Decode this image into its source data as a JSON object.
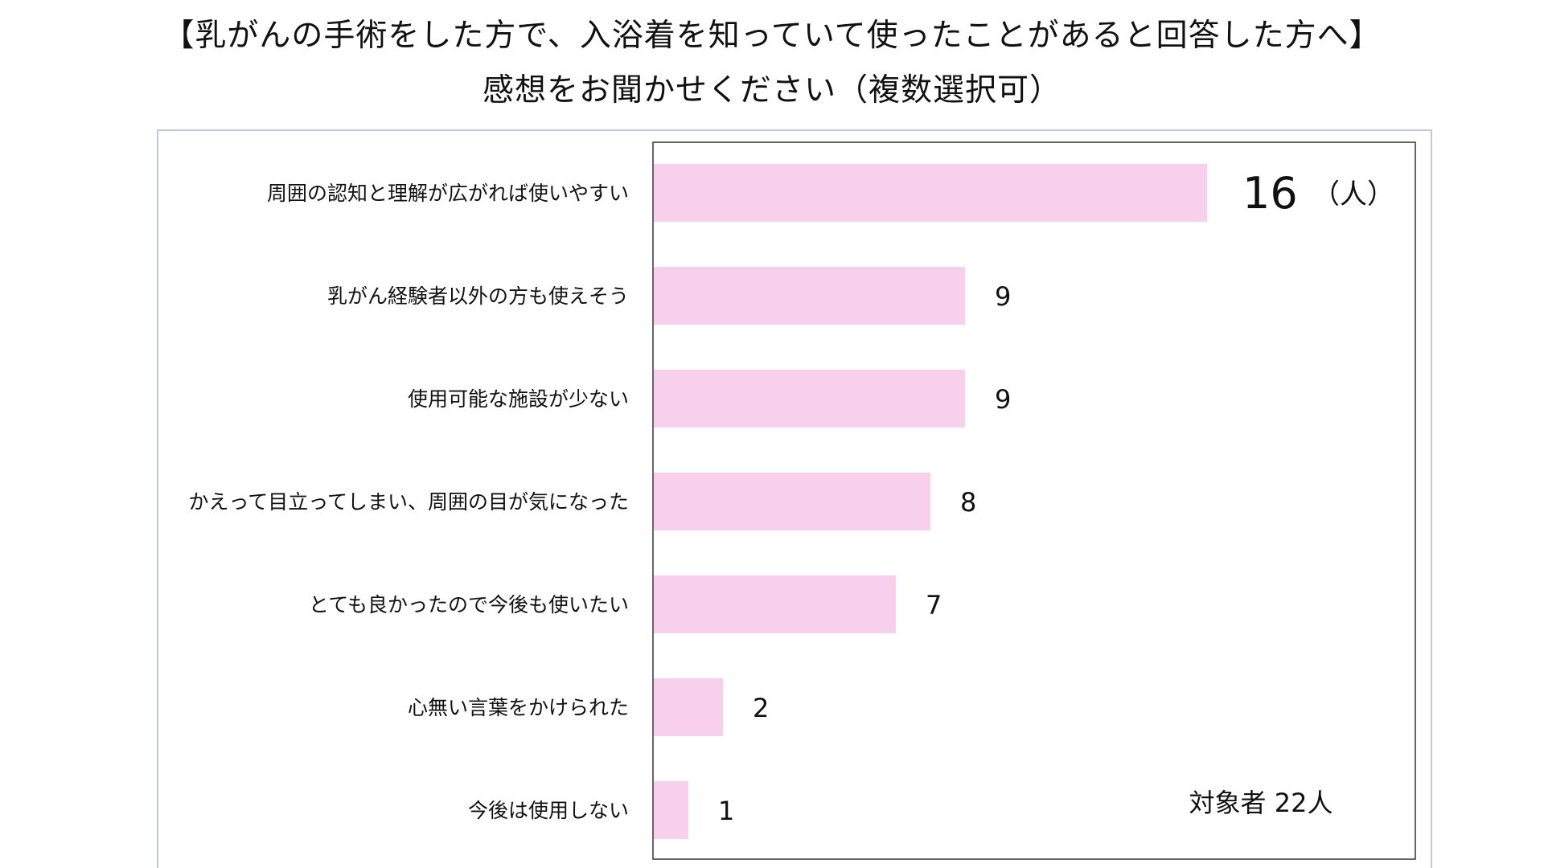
{
  "title_line1": "【乳がんの手術をした方で、入浴着を知っていて使ったことがあると回答した方へ】",
  "title_line2": "感想をお聞かせください（複数選択可）",
  "colors": {
    "bar": "#f8d0ec",
    "plot_border": "#333333",
    "frame_border": "#a9b8cc"
  },
  "chart_data": {
    "type": "bar",
    "orientation": "horizontal",
    "title": "【乳がんの手術をした方で、入浴着を知っていて使ったことがあると回答した方へ】感想をお聞かせください（複数選択可）",
    "categories": [
      "周囲の認知と理解が広がれば使いやすい",
      "乳がん経験者以外の方も使えそう",
      "使用可能な施設が少ない",
      "かえって目立ってしまい、周囲の目が気になった",
      "とても良かったので今後も使いたい",
      "心無い言葉をかけられた",
      "今後は使用しない"
    ],
    "values": [
      16,
      9,
      9,
      8,
      7,
      2,
      1
    ],
    "value_labels": [
      "16",
      "9",
      "9",
      "8",
      "7",
      "2",
      "1"
    ],
    "unit_label": "（人）",
    "xlim": [
      0,
      22
    ],
    "grid": false,
    "legend": "none",
    "respondents_note": "対象者 22人"
  }
}
